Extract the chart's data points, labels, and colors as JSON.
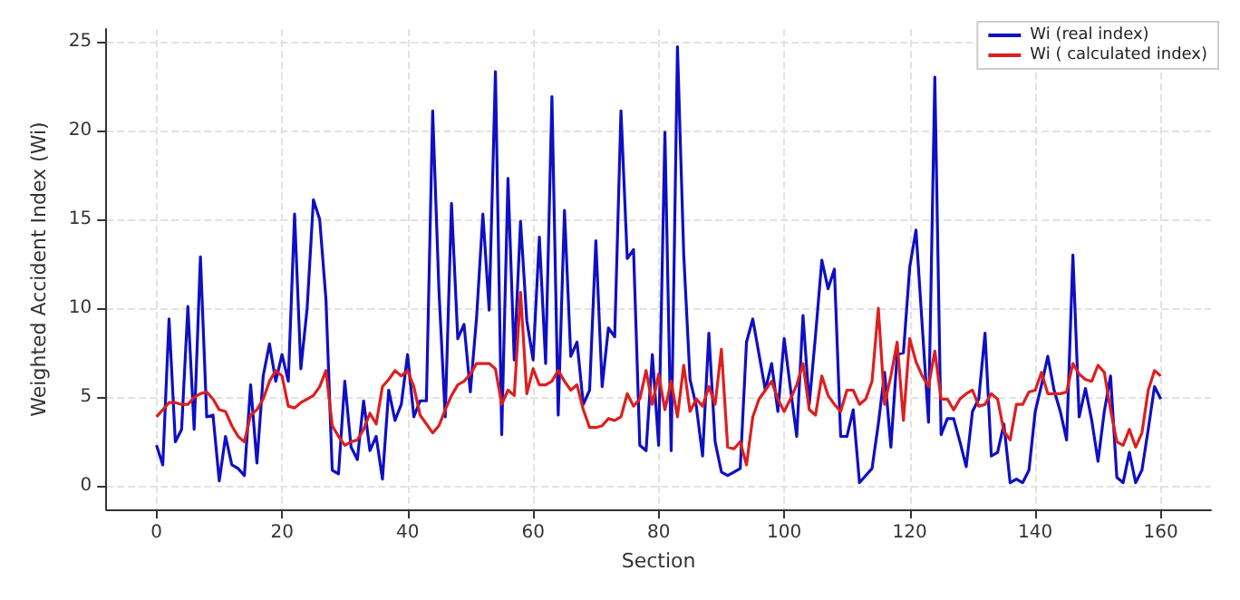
{
  "chart_data": {
    "type": "line",
    "xlabel": "Section",
    "ylabel": "Weighted Accident Index (Wi)",
    "x": [
      0,
      1,
      2,
      3,
      4,
      5,
      6,
      7,
      8,
      9,
      10,
      11,
      12,
      13,
      14,
      15,
      16,
      17,
      18,
      19,
      20,
      21,
      22,
      23,
      24,
      25,
      26,
      27,
      28,
      29,
      30,
      31,
      32,
      33,
      34,
      35,
      36,
      37,
      38,
      39,
      40,
      41,
      42,
      43,
      44,
      45,
      46,
      47,
      48,
      49,
      50,
      51,
      52,
      53,
      54,
      55,
      56,
      57,
      58,
      59,
      60,
      61,
      62,
      63,
      64,
      65,
      66,
      67,
      68,
      69,
      70,
      71,
      72,
      73,
      74,
      75,
      76,
      77,
      78,
      79,
      80,
      81,
      82,
      83,
      84,
      85,
      86,
      87,
      88,
      89,
      90,
      91,
      92,
      93,
      94,
      95,
      96,
      97,
      98,
      99,
      100,
      101,
      102,
      103,
      104,
      105,
      106,
      107,
      108,
      109,
      110,
      111,
      112,
      113,
      114,
      115,
      116,
      117,
      118,
      119,
      120,
      121,
      122,
      123,
      124,
      125,
      126,
      127,
      128,
      129,
      130,
      131,
      132,
      133,
      134,
      135,
      136,
      137,
      138,
      139,
      140,
      141,
      142,
      143,
      144,
      145,
      146,
      147,
      148,
      149,
      150,
      151,
      152,
      153,
      154,
      155,
      156,
      157,
      158,
      159,
      160
    ],
    "series": [
      {
        "name": "Wi (real index)",
        "color": "#0f0fc4",
        "values": [
          2.3,
          1.2,
          9.4,
          2.5,
          3.2,
          10.1,
          3.2,
          12.9,
          3.9,
          4.0,
          0.3,
          2.8,
          1.2,
          1.0,
          0.6,
          5.7,
          1.3,
          6.2,
          8.0,
          5.9,
          7.4,
          5.9,
          15.3,
          6.6,
          10.0,
          16.1,
          15.0,
          10.5,
          0.9,
          0.7,
          5.9,
          2.2,
          1.5,
          4.8,
          2.0,
          2.8,
          0.4,
          5.4,
          3.7,
          4.6,
          7.4,
          3.9,
          4.8,
          4.8,
          21.1,
          11.0,
          3.9,
          15.9,
          8.3,
          9.1,
          5.3,
          9.5,
          15.3,
          9.9,
          23.3,
          2.9,
          17.3,
          7.1,
          14.9,
          9.3,
          7.1,
          14.0,
          6.9,
          21.9,
          4.0,
          15.5,
          7.3,
          8.1,
          4.6,
          5.4,
          13.8,
          5.6,
          8.9,
          8.4,
          21.1,
          12.8,
          13.3,
          2.3,
          2.0,
          7.4,
          2.3,
          19.9,
          2.0,
          24.7,
          13.0,
          6.0,
          4.5,
          1.7,
          8.6,
          2.5,
          0.8,
          0.6,
          0.8,
          1.0,
          8.1,
          9.4,
          7.4,
          5.4,
          6.9,
          4.2,
          8.3,
          5.5,
          2.8,
          9.6,
          4.6,
          8.5,
          12.7,
          11.1,
          12.2,
          2.8,
          2.8,
          4.3,
          0.2,
          0.6,
          1.0,
          3.5,
          6.4,
          2.2,
          7.4,
          7.5,
          12.3,
          14.4,
          9.0,
          3.6,
          23.0,
          2.9,
          3.8,
          3.8,
          2.5,
          1.1,
          4.2,
          4.9,
          8.6,
          1.7,
          1.9,
          3.5,
          0.2,
          0.4,
          0.2,
          0.9,
          4.2,
          5.7,
          7.3,
          5.4,
          4.2,
          2.6,
          13.0,
          3.9,
          5.5,
          3.7,
          1.4,
          4.2,
          6.2,
          0.5,
          0.2,
          1.9,
          0.2,
          0.9,
          3.2,
          5.6,
          4.9
        ]
      },
      {
        "name": "Wi ( calculated index)",
        "color": "#dd1f1f",
        "values": [
          3.9,
          4.3,
          4.7,
          4.7,
          4.6,
          4.6,
          5.0,
          5.2,
          5.3,
          4.9,
          4.3,
          4.2,
          3.4,
          2.8,
          2.5,
          4.0,
          4.3,
          4.9,
          5.9,
          6.5,
          6.2,
          4.5,
          4.4,
          4.7,
          4.9,
          5.1,
          5.6,
          6.5,
          3.4,
          2.8,
          2.3,
          2.5,
          2.6,
          3.2,
          4.1,
          3.5,
          5.6,
          6.0,
          6.5,
          6.2,
          6.5,
          5.6,
          4.0,
          3.5,
          3.0,
          3.4,
          4.3,
          5.1,
          5.7,
          5.9,
          6.3,
          6.9,
          6.9,
          6.9,
          6.6,
          4.6,
          5.4,
          5.1,
          10.9,
          5.2,
          6.6,
          5.7,
          5.7,
          5.9,
          6.5,
          5.9,
          5.4,
          5.7,
          4.3,
          3.3,
          3.3,
          3.4,
          3.8,
          3.7,
          3.9,
          5.2,
          4.5,
          4.9,
          6.5,
          4.6,
          6.3,
          4.3,
          5.9,
          3.9,
          6.8,
          4.2,
          4.9,
          4.5,
          5.6,
          4.6,
          7.7,
          2.2,
          2.1,
          2.5,
          1.2,
          3.9,
          4.9,
          5.4,
          5.9,
          4.9,
          4.2,
          4.9,
          5.7,
          6.9,
          4.3,
          4.0,
          6.2,
          5.1,
          4.6,
          4.2,
          5.4,
          5.4,
          4.6,
          4.9,
          5.9,
          10.0,
          4.6,
          6.2,
          8.1,
          3.7,
          8.3,
          7.0,
          6.2,
          5.6,
          7.6,
          4.9,
          4.9,
          4.3,
          4.9,
          5.2,
          5.4,
          4.5,
          4.6,
          5.2,
          4.9,
          3.1,
          2.6,
          4.6,
          4.6,
          5.3,
          5.4,
          6.4,
          5.2,
          5.2,
          5.2,
          5.3,
          6.9,
          6.3,
          6.0,
          5.9,
          6.8,
          6.4,
          4.3,
          2.5,
          2.3,
          3.2,
          2.2,
          3.0,
          5.4,
          6.5,
          6.2
        ]
      }
    ],
    "xlim": [
      -8,
      168
    ],
    "xticks": [
      0,
      20,
      40,
      60,
      80,
      100,
      120,
      140,
      160
    ],
    "ylim": [
      -1.3,
      25.7
    ],
    "yticks": [
      0,
      5,
      10,
      15,
      20,
      25
    ],
    "grid": true,
    "legend": "top right",
    "marker": "none",
    "line_style": "solid"
  }
}
